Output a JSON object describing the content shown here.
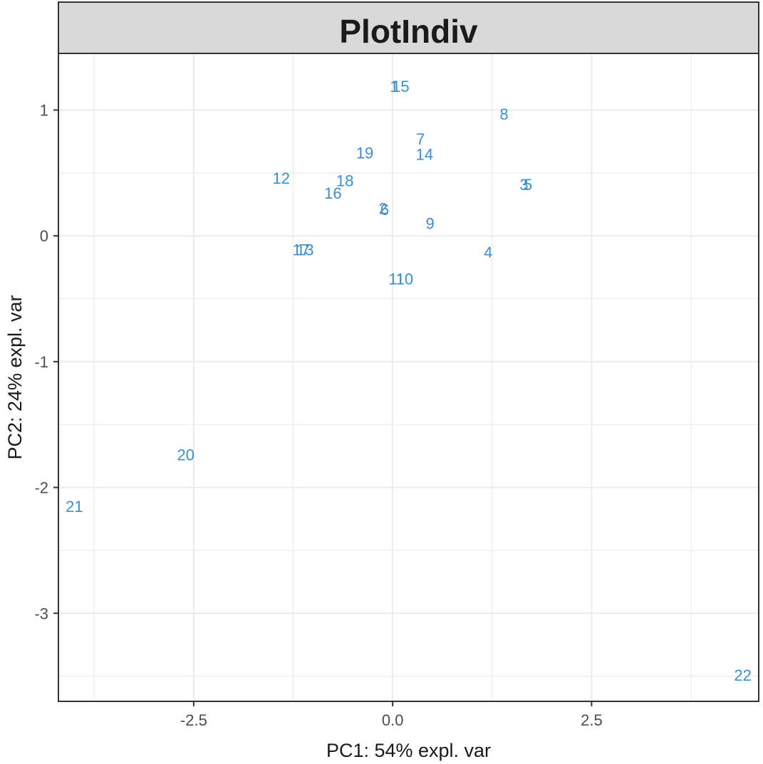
{
  "chart_data": {
    "type": "scatter",
    "title": "PlotIndiv",
    "xlabel": "PC1: 54% expl. var",
    "ylabel": "PC2: 24% expl. var",
    "xlim": [
      -4.2,
      4.6
    ],
    "ylim": [
      -3.7,
      1.45
    ],
    "x_ticks": [
      {
        "value": -2.5,
        "label": "-2.5"
      },
      {
        "value": 0.0,
        "label": "0.0"
      },
      {
        "value": 2.5,
        "label": "2.5"
      }
    ],
    "y_ticks": [
      {
        "value": 1,
        "label": "1"
      },
      {
        "value": 0,
        "label": "0"
      },
      {
        "value": -1,
        "label": "-1"
      },
      {
        "value": -2,
        "label": "-2"
      },
      {
        "value": -3,
        "label": "-3"
      }
    ],
    "grid": true,
    "legend": "none",
    "point_color": "#3a8fd3",
    "series": [
      {
        "name": "individuals",
        "points": [
          {
            "label": "1",
            "x": 0.02,
            "y": 1.19
          },
          {
            "label": "15",
            "x": 0.1,
            "y": 1.19
          },
          {
            "label": "8",
            "x": 1.4,
            "y": 0.97
          },
          {
            "label": "7",
            "x": 0.35,
            "y": 0.77
          },
          {
            "label": "19",
            "x": -0.35,
            "y": 0.66
          },
          {
            "label": "14",
            "x": 0.4,
            "y": 0.65
          },
          {
            "label": "12",
            "x": -1.4,
            "y": 0.46
          },
          {
            "label": "18",
            "x": -0.6,
            "y": 0.44
          },
          {
            "label": "3",
            "x": 1.65,
            "y": 0.41
          },
          {
            "label": "5",
            "x": 1.7,
            "y": 0.41
          },
          {
            "label": "16",
            "x": -0.75,
            "y": 0.34
          },
          {
            "label": "2",
            "x": -0.12,
            "y": 0.22
          },
          {
            "label": "6",
            "x": -0.1,
            "y": 0.21
          },
          {
            "label": "9",
            "x": 0.47,
            "y": 0.1
          },
          {
            "label": "17",
            "x": -1.15,
            "y": -0.11
          },
          {
            "label": "13",
            "x": -1.1,
            "y": -0.11
          },
          {
            "label": "4",
            "x": 1.2,
            "y": -0.13
          },
          {
            "label": "11",
            "x": 0.05,
            "y": -0.34
          },
          {
            "label": "10",
            "x": 0.15,
            "y": -0.34
          },
          {
            "label": "20",
            "x": -2.6,
            "y": -1.74
          },
          {
            "label": "21",
            "x": -4.0,
            "y": -2.15
          },
          {
            "label": "22",
            "x": 4.4,
            "y": -3.49
          }
        ]
      }
    ]
  }
}
